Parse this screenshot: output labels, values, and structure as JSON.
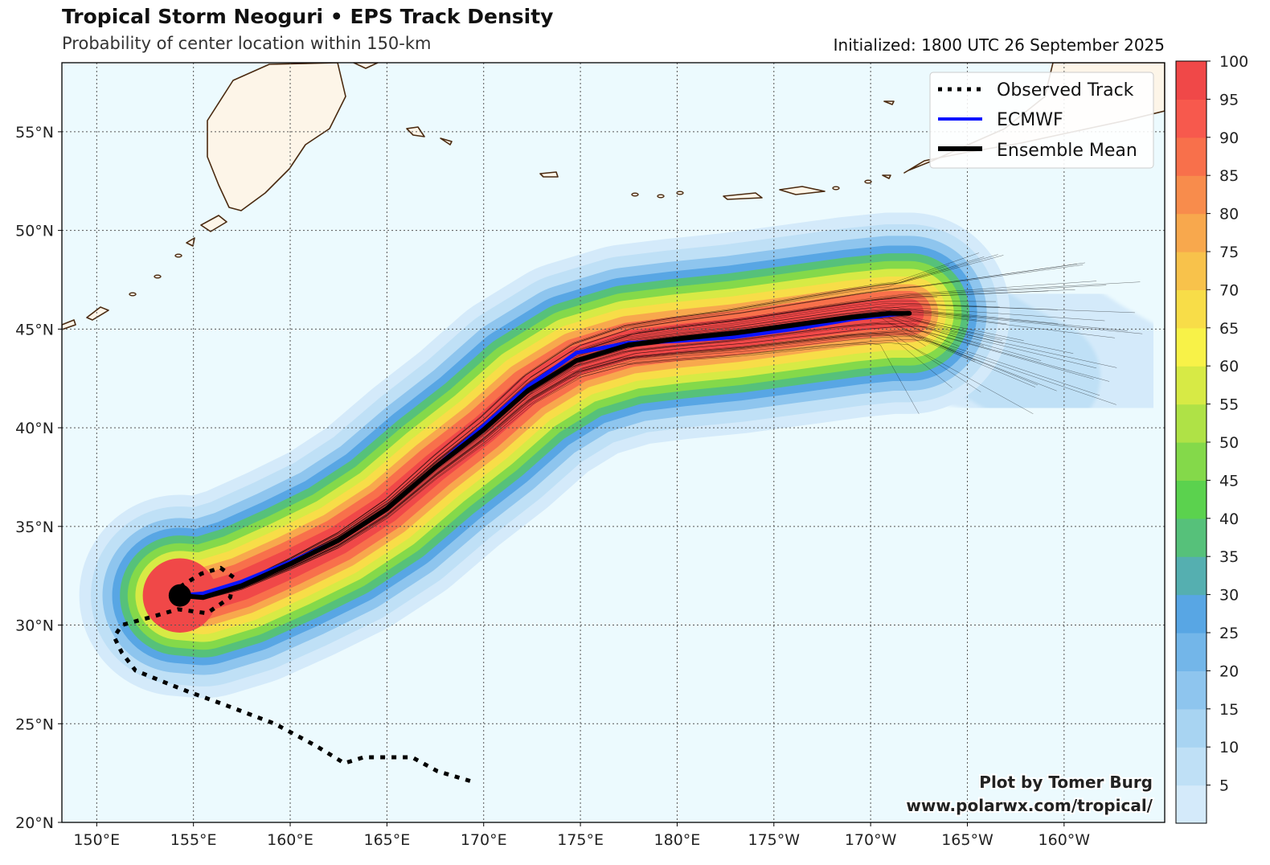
{
  "header": {
    "title": "Tropical Storm Neoguri • EPS Track Density",
    "subtitle": "Probability of center location within 150-km",
    "initialized": "Initialized: 1800 UTC 26 September 2025"
  },
  "legend": {
    "observed": "Observed Track",
    "ecmwf": "ECMWF",
    "mean": "Ensemble Mean"
  },
  "credit": {
    "line1": "Plot by Tomer Burg",
    "line2": "www.polarwx.com/tropical/"
  },
  "colors": {
    "ocean": "#ecfafe",
    "land": "#fdf5e8",
    "coast": "#4a2a10",
    "ecmwf": "#0a14ff",
    "mean": "#000000"
  },
  "chart_data": {
    "type": "map",
    "lon_range": [
      148.2,
      205.2
    ],
    "lat_range": [
      20,
      58.5
    ],
    "grid": true,
    "x_ticks": [
      {
        "lon": 150,
        "label": "150°E"
      },
      {
        "lon": 155,
        "label": "155°E"
      },
      {
        "lon": 160,
        "label": "160°E"
      },
      {
        "lon": 165,
        "label": "165°E"
      },
      {
        "lon": 170,
        "label": "170°E"
      },
      {
        "lon": 175,
        "label": "175°E"
      },
      {
        "lon": 180,
        "label": "180°E"
      },
      {
        "lon": 185,
        "label": "175°W"
      },
      {
        "lon": 190,
        "label": "170°W"
      },
      {
        "lon": 195,
        "label": "165°W"
      },
      {
        "lon": 200,
        "label": "160°W"
      }
    ],
    "y_ticks": [
      {
        "lat": 20,
        "label": "20°N"
      },
      {
        "lat": 25,
        "label": "25°N"
      },
      {
        "lat": 30,
        "label": "30°N"
      },
      {
        "lat": 35,
        "label": "35°N"
      },
      {
        "lat": 40,
        "label": "40°N"
      },
      {
        "lat": 45,
        "label": "45°N"
      },
      {
        "lat": 50,
        "label": "50°N"
      },
      {
        "lat": 55,
        "label": "55°N"
      }
    ],
    "colorbar": {
      "levels": [
        0,
        5,
        10,
        15,
        20,
        25,
        30,
        35,
        40,
        45,
        50,
        55,
        60,
        65,
        70,
        75,
        80,
        85,
        90,
        95,
        100
      ],
      "labels": [
        "5",
        "10",
        "15",
        "20",
        "25",
        "30",
        "35",
        "40",
        "45",
        "50",
        "55",
        "60",
        "65",
        "70",
        "75",
        "80",
        "85",
        "90",
        "95",
        "100"
      ],
      "colors": [
        "#d4eafa",
        "#bfe0f6",
        "#a8d4f2",
        "#8ec5ee",
        "#73b6e9",
        "#58a6e4",
        "#55afb0",
        "#56c17a",
        "#5bd24e",
        "#84d94a",
        "#afe246",
        "#d7ea45",
        "#f8f248",
        "#f8dd48",
        "#f8c24b",
        "#f8a84d",
        "#f88c4c",
        "#f8704b",
        "#f7594d",
        "#f04848"
      ]
    },
    "observed_track": [
      [
        169.3,
        22.1
      ],
      [
        167.6,
        22.6
      ],
      [
        166.3,
        23.3
      ],
      [
        163.8,
        23.3
      ],
      [
        162.8,
        23.0
      ],
      [
        161.3,
        23.9
      ],
      [
        159.2,
        25.0
      ],
      [
        156.5,
        26.0
      ],
      [
        154.8,
        26.6
      ],
      [
        153.5,
        27.1
      ],
      [
        152.0,
        27.7
      ],
      [
        151.3,
        28.6
      ],
      [
        150.9,
        29.4
      ],
      [
        151.3,
        30.0
      ],
      [
        152.8,
        30.4
      ],
      [
        154.2,
        30.8
      ],
      [
        155.7,
        30.6
      ],
      [
        156.9,
        31.4
      ],
      [
        157.1,
        32.4
      ],
      [
        156.4,
        32.9
      ],
      [
        155.4,
        32.6
      ],
      [
        154.4,
        32.0
      ],
      [
        154.3,
        31.5
      ]
    ],
    "ecmwf_track": [
      [
        154.3,
        31.5
      ],
      [
        155.5,
        31.6
      ],
      [
        157.5,
        32.2
      ],
      [
        160.0,
        33.2
      ],
      [
        162.5,
        34.3
      ],
      [
        165.0,
        35.9
      ],
      [
        167.5,
        38.0
      ],
      [
        170.0,
        40.1
      ],
      [
        172.3,
        42.1
      ],
      [
        174.8,
        43.8
      ],
      [
        177.5,
        44.3
      ],
      [
        180.0,
        44.4
      ],
      [
        183.0,
        44.6
      ],
      [
        186.0,
        45.0
      ],
      [
        189.0,
        45.5
      ],
      [
        190.8,
        45.7
      ],
      [
        191.7,
        45.8
      ]
    ],
    "mean_track": [
      [
        154.3,
        31.5
      ],
      [
        155.5,
        31.4
      ],
      [
        157.5,
        32.0
      ],
      [
        160.0,
        33.1
      ],
      [
        162.5,
        34.3
      ],
      [
        165.0,
        35.9
      ],
      [
        167.5,
        38.0
      ],
      [
        170.0,
        39.9
      ],
      [
        172.3,
        41.9
      ],
      [
        174.8,
        43.4
      ],
      [
        177.5,
        44.2
      ],
      [
        180.0,
        44.5
      ],
      [
        183.0,
        44.8
      ],
      [
        186.0,
        45.2
      ],
      [
        189.0,
        45.6
      ],
      [
        191.0,
        45.8
      ],
      [
        192.0,
        45.8
      ]
    ],
    "current_position": [
      154.3,
      31.5
    ],
    "density_bands": [
      {
        "level": 5,
        "width": 5.2
      },
      {
        "level": 10,
        "width": 4.6
      },
      {
        "level": 20,
        "width": 4.0
      },
      {
        "level": 30,
        "width": 3.5
      },
      {
        "level": 40,
        "width": 3.1
      },
      {
        "level": 50,
        "width": 2.7
      },
      {
        "level": 60,
        "width": 2.3
      },
      {
        "level": 70,
        "width": 1.9
      },
      {
        "level": 80,
        "width": 1.5
      },
      {
        "level": 90,
        "width": 1.15
      },
      {
        "level": 100,
        "width": 0.75
      }
    ]
  }
}
